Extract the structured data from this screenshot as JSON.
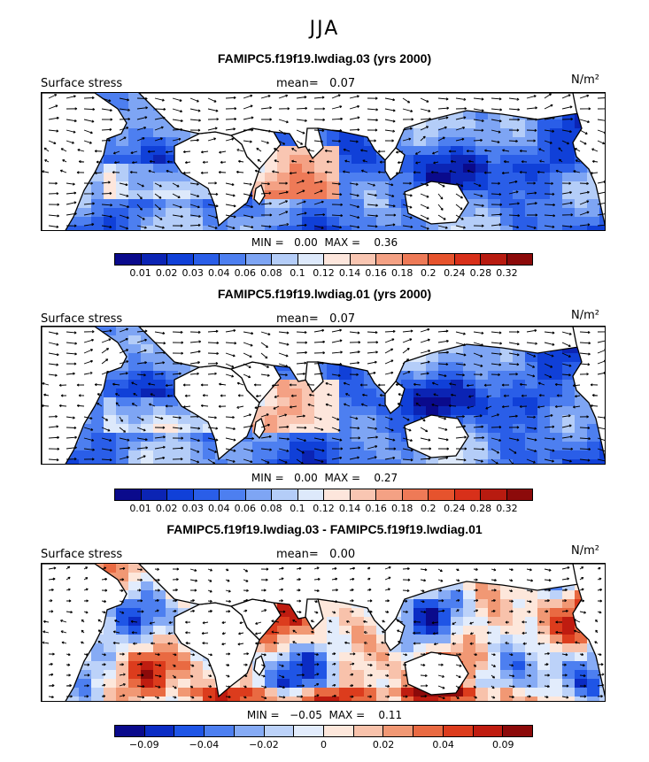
{
  "season": "JJA",
  "colors": {
    "abs_scale": [
      "#0a0a8c",
      "#0b24b4",
      "#1040d8",
      "#2a5ee8",
      "#4d7ff0",
      "#7ea5f4",
      "#b4cdf8",
      "#dde9fb",
      "#fde6dc",
      "#f9c6b2",
      "#f4a184",
      "#ee7a57",
      "#e6532d",
      "#d8301a",
      "#b81b10",
      "#8c0a0a"
    ],
    "diff_scale": [
      "#0a0a8c",
      "#0b2cc4",
      "#1f55e6",
      "#4d7ff0",
      "#86abf5",
      "#bcd2f9",
      "#e2ecfc",
      "#fde7db",
      "#f8c2ab",
      "#f19874",
      "#e96a42",
      "#dc3c1d",
      "#bf1c10",
      "#8c0a0a"
    ],
    "land": "#ffffff"
  },
  "panels": [
    {
      "title": "FAMIPC5.f19f19.lwdiag.03 (yrs 2000)",
      "left_label": "Surface stress",
      "mean_label": "mean=",
      "mean_value": "0.07",
      "units": "N/m²",
      "min_label": "MIN =",
      "min_value": "0.00",
      "max_label": "MAX =",
      "max_value": "0.36",
      "scale": "abs",
      "colorbar_labels": [
        "0.01",
        "0.02",
        "0.03",
        "0.04",
        "0.06",
        "0.08",
        "0.1",
        "0.12",
        "0.14",
        "0.16",
        "0.18",
        "0.2",
        "0.24",
        "0.28",
        "0.32"
      ]
    },
    {
      "title": "FAMIPC5.f19f19.lwdiag.01 (yrs 2000)",
      "left_label": "Surface stress",
      "mean_label": "mean=",
      "mean_value": "0.07",
      "units": "N/m²",
      "min_label": "MIN =",
      "min_value": "0.00",
      "max_label": "MAX =",
      "max_value": "0.27",
      "scale": "abs",
      "colorbar_labels": [
        "0.01",
        "0.02",
        "0.03",
        "0.04",
        "0.06",
        "0.08",
        "0.1",
        "0.12",
        "0.14",
        "0.16",
        "0.18",
        "0.2",
        "0.24",
        "0.28",
        "0.32"
      ]
    },
    {
      "title": "FAMIPC5.f19f19.lwdiag.03 - FAMIPC5.f19f19.lwdiag.01",
      "left_label": "Surface stress",
      "mean_label": "mean=",
      "mean_value": "0.00",
      "units": "N/m²",
      "min_label": "MIN =",
      "min_value": "−0.05",
      "max_label": "MAX =",
      "max_value": "0.11",
      "scale": "diff",
      "colorbar_labels": [
        "−0.09",
        "−0.04",
        "−0.02",
        "0",
        "0.02",
        "0.04",
        "0.09"
      ]
    }
  ]
}
